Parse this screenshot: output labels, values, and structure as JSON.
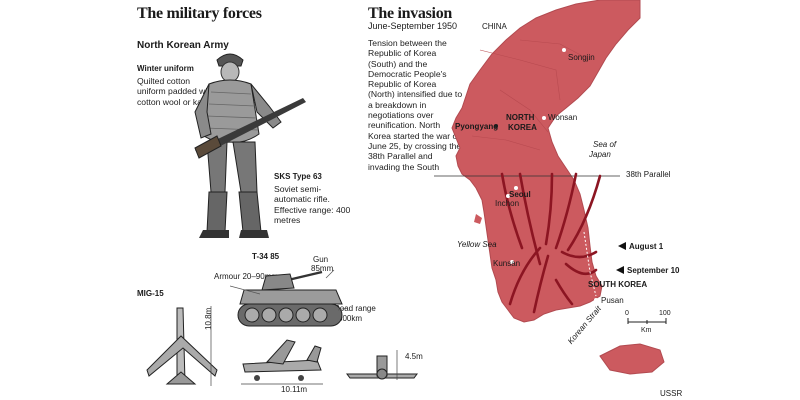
{
  "left": {
    "title": "The military forces",
    "army_label": "North Korean Army",
    "uniform": {
      "heading": "Winter uniform",
      "text": "Quilted cotton uniform padded with cotton wool or kapok"
    },
    "rifle": {
      "heading": "SKS Type 63",
      "text": "Soviet semi-automatic rifle. Effective range: 400 metres"
    },
    "tank": {
      "heading": "T-34 85",
      "gun": "Gun",
      "gun_size": "85mm",
      "armour": "Armour 20–90mm",
      "road_range": "Road range",
      "road_range_value": "300km"
    },
    "jet": {
      "heading": "MIG-15",
      "length": "10.8m",
      "span": "10.11m",
      "height": "4.5m"
    }
  },
  "right": {
    "title": "The invasion",
    "dates": "June-September 1950",
    "text": "Tension between the Republic of Korea (South) and the Democratic People's Republic of Korea (North) intensified due to a breakdown in negotiations over reunification. North Korea started the war on June 25, by crossing the 38th Parallel and invading the South"
  },
  "map": {
    "labels": {
      "china": "China",
      "songjin": "Songjin",
      "north_korea_1": "NORTH",
      "north_korea_2": "KOREA",
      "pyongyang": "Pyongyang",
      "wonsan": "Wonsan",
      "sea_of_japan_1": "Sea of",
      "sea_of_japan_2": "Japan",
      "parallel": "38th Parallel",
      "seoul": "Seoul",
      "inchon": "Inchon",
      "yellow_sea": "Yellow Sea",
      "kunsan": "Kunsan",
      "south_korea": "SOUTH KOREA",
      "pusan": "Pusan",
      "korean_strait": "Korean Strait",
      "august": "August 1",
      "september": "September 10",
      "ussr": "USSR"
    },
    "scale": {
      "zero": "0",
      "hundred": "100",
      "unit": "Km"
    },
    "colors": {
      "land": "#cc5a5f",
      "arrows": "#8c1522",
      "sea": "#ffffff"
    }
  }
}
